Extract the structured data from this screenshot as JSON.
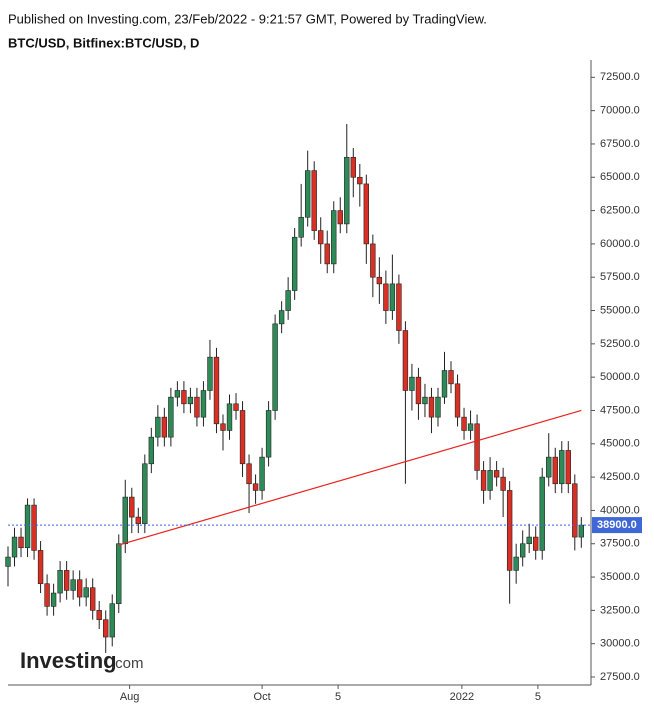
{
  "header": {
    "published": "Published on Investing.com, 23/Feb/2022 - 9:21:57 GMT, Powered by TradingView.",
    "symbol": "BTC/USD, Bitfinex:BTC/USD, D"
  },
  "logo": {
    "name": "Investing",
    "suffix": ".com"
  },
  "chart_data": {
    "type": "candlestick",
    "up_color": "#2e8b57",
    "down_color": "#d93025",
    "x": [
      -56,
      -53,
      -50,
      -47,
      -44,
      -41,
      -38,
      -35,
      -32,
      -29,
      -26,
      -23,
      -20,
      -17,
      -14,
      -11,
      -8,
      -5,
      -2,
      1,
      4,
      7,
      10,
      13,
      16,
      19,
      22,
      25,
      28,
      31,
      34,
      37,
      40,
      43,
      46,
      49,
      52,
      55,
      58,
      61,
      64,
      67,
      70,
      73,
      76,
      79,
      82,
      85,
      88,
      91,
      94,
      97,
      100,
      103,
      106,
      109,
      112,
      115,
      118,
      121,
      124,
      127,
      130,
      133,
      136,
      139,
      142,
      145,
      148,
      151,
      154,
      157,
      160,
      163,
      166,
      169,
      172,
      175,
      178,
      181,
      184,
      187,
      190,
      193,
      196,
      199,
      202,
      205,
      208
    ],
    "open": [
      35800,
      36500,
      38000,
      37200,
      40400,
      37000,
      34500,
      32800,
      33800,
      35500,
      34000,
      34800,
      33500,
      34200,
      32500,
      31800,
      30500,
      33000,
      37500,
      41000,
      39500,
      39000,
      43500,
      45500,
      47000,
      45500,
      48500,
      49000,
      48000,
      48500,
      47000,
      49000,
      51500,
      46500,
      46000,
      48000,
      47500,
      43500,
      42000,
      41500,
      44000,
      47500,
      54000,
      55000,
      56500,
      60500,
      62000,
      65500,
      61000,
      60000,
      58500,
      62500,
      61500,
      66500,
      65000,
      64500,
      60000,
      57500,
      57000,
      55000,
      57000,
      53500,
      49000,
      50000,
      48000,
      48500,
      47000,
      48500,
      50500,
      49500,
      47000,
      46000,
      46500,
      43000,
      41500,
      43000,
      42500,
      41500,
      35500,
      36500,
      37500,
      38000,
      37000,
      42500,
      44000,
      42000,
      44500,
      42000,
      38000
    ],
    "high": [
      37300,
      38700,
      38700,
      40900,
      40900,
      37700,
      35200,
      34500,
      36200,
      36200,
      35500,
      35500,
      34900,
      34900,
      33200,
      32500,
      33700,
      38200,
      42300,
      41700,
      40200,
      44200,
      46200,
      47900,
      47700,
      49200,
      49700,
      49700,
      49200,
      49200,
      49700,
      52800,
      52200,
      47200,
      48700,
      48800,
      48200,
      44200,
      42700,
      44700,
      48200,
      54700,
      55700,
      57500,
      61200,
      64500,
      67000,
      66200,
      62000,
      61000,
      63200,
      63500,
      69000,
      67200,
      66000,
      65200,
      60700,
      59000,
      58000,
      59200,
      57700,
      54200,
      51000,
      50700,
      49500,
      49200,
      49200,
      51900,
      51200,
      50200,
      47700,
      47500,
      47200,
      43700,
      44000,
      43700,
      43200,
      42200,
      37500,
      38500,
      39000,
      38800,
      43200,
      45800,
      44700,
      45200,
      45200,
      42700,
      39500
    ],
    "low": [
      34300,
      35800,
      36500,
      36500,
      36300,
      33800,
      32100,
      32100,
      33100,
      33300,
      33300,
      32800,
      32800,
      31800,
      31100,
      29300,
      29800,
      32300,
      36800,
      38300,
      38300,
      38300,
      42800,
      44800,
      44800,
      44800,
      47800,
      47300,
      47300,
      46300,
      46300,
      48300,
      45800,
      44500,
      45300,
      46800,
      42500,
      39800,
      40500,
      40800,
      43300,
      46800,
      53300,
      54300,
      55800,
      59800,
      61300,
      60300,
      58500,
      57800,
      57800,
      60800,
      60800,
      63500,
      62800,
      58500,
      56000,
      55500,
      54000,
      54300,
      52500,
      42000,
      47500,
      46800,
      47000,
      45800,
      46300,
      48000,
      48800,
      46300,
      45300,
      45300,
      42300,
      40500,
      40800,
      41800,
      39500,
      33000,
      34500,
      35800,
      36800,
      36300,
      36300,
      41800,
      41300,
      41300,
      41300,
      37000,
      37200
    ],
    "close": [
      36500,
      38000,
      37200,
      40400,
      37000,
      34500,
      32800,
      33800,
      35500,
      34000,
      34800,
      33500,
      34200,
      32500,
      31800,
      30500,
      33000,
      37500,
      41000,
      39500,
      39000,
      43500,
      45500,
      47000,
      45500,
      48500,
      49000,
      48000,
      48500,
      47000,
      49000,
      51500,
      46500,
      46000,
      48000,
      47500,
      43500,
      42000,
      41500,
      44000,
      47500,
      54000,
      55000,
      56500,
      60500,
      62000,
      65500,
      61000,
      60000,
      58500,
      62500,
      61500,
      66500,
      65000,
      64500,
      60000,
      57500,
      57000,
      55000,
      57000,
      53500,
      49000,
      50000,
      48000,
      48500,
      47000,
      48500,
      50500,
      49500,
      47000,
      46000,
      46500,
      43000,
      41500,
      43000,
      42500,
      41500,
      35500,
      36500,
      37500,
      38000,
      37000,
      42500,
      44000,
      42000,
      44500,
      42000,
      38000,
      38900
    ],
    "xlim": [
      -56,
      212
    ],
    "xticks": [
      {
        "value": 0,
        "label": "Aug"
      },
      {
        "value": 61,
        "label": "Oct"
      },
      {
        "value": 96,
        "label": "5"
      },
      {
        "value": 153,
        "label": "2022"
      },
      {
        "value": 188,
        "label": "5"
      }
    ],
    "ylim": [
      26900,
      73800
    ],
    "yticks": [
      {
        "value": 27500,
        "label": "27500.0"
      },
      {
        "value": 30000,
        "label": "30000.0"
      },
      {
        "value": 32500,
        "label": "32500.0"
      },
      {
        "value": 35000,
        "label": "35000.0"
      },
      {
        "value": 37500,
        "label": "37500.0"
      },
      {
        "value": 40000,
        "label": "40000.0"
      },
      {
        "value": 42500,
        "label": "42500.0"
      },
      {
        "value": 45000,
        "label": "45000.0"
      },
      {
        "value": 47500,
        "label": "47500.0"
      },
      {
        "value": 50000,
        "label": "50000.0"
      },
      {
        "value": 52500,
        "label": "52500.0"
      },
      {
        "value": 55000,
        "label": "55000.0"
      },
      {
        "value": 57500,
        "label": "57500.0"
      },
      {
        "value": 60000,
        "label": "60000.0"
      },
      {
        "value": 62500,
        "label": "62500.0"
      },
      {
        "value": 65000,
        "label": "65000.0"
      },
      {
        "value": 67500,
        "label": "67500.0"
      },
      {
        "value": 70000,
        "label": "70000.0"
      },
      {
        "value": 72500,
        "label": "72500.0"
      }
    ],
    "last_price": {
      "value": 38900,
      "label": "38900.0",
      "color": "#3f67d6"
    },
    "trend_line": {
      "color": "#e8231f",
      "x": [
        -5,
        208
      ],
      "values": [
        37400,
        47500
      ]
    }
  }
}
